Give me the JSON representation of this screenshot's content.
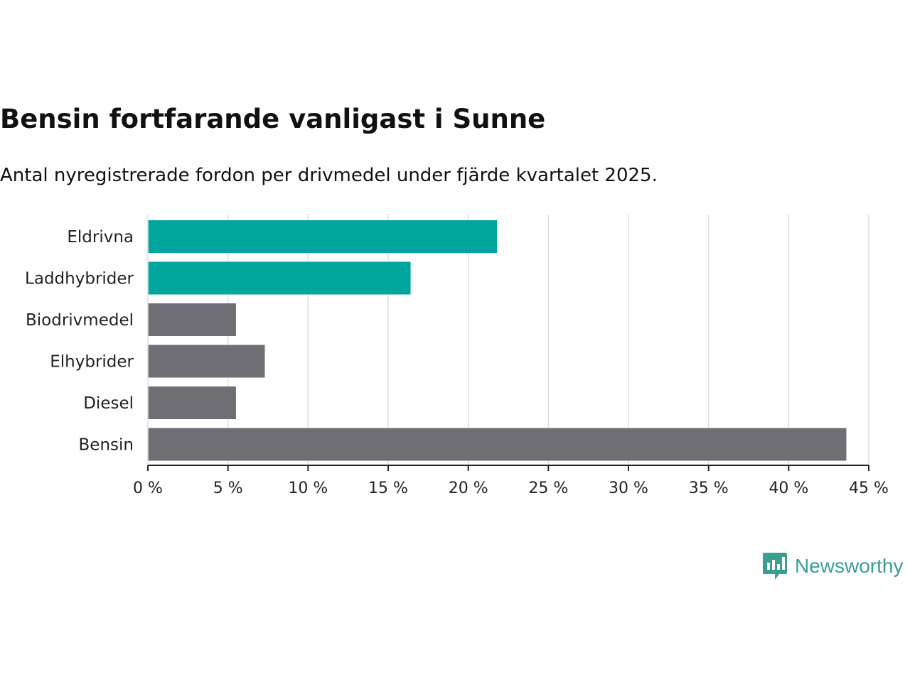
{
  "chart_data": {
    "type": "bar",
    "orientation": "horizontal",
    "title": "Bensin fortfarande vanligast i Sunne",
    "subtitle": "Antal nyregistrerade fordon per drivmedel under fjärde kvartalet 2025.",
    "categories": [
      "Eldrivna",
      "Laddhybrider",
      "Biodrivmedel",
      "Elhybrider",
      "Diesel",
      "Bensin"
    ],
    "values": [
      21.8,
      16.4,
      5.5,
      7.3,
      5.5,
      43.6
    ],
    "value_unit": "%",
    "xlim": [
      0,
      45
    ],
    "xticks": [
      0,
      5,
      10,
      15,
      20,
      25,
      30,
      35,
      40,
      45
    ],
    "xtick_labels": [
      "0 %",
      "5 %",
      "10 %",
      "15 %",
      "20 %",
      "25 %",
      "30 %",
      "35 %",
      "40 %",
      "45 %"
    ],
    "grid": true,
    "bar_colors": [
      "#00a59b",
      "#00a59b",
      "#6f6e74",
      "#6f6e74",
      "#6f6e74",
      "#6f6e74"
    ],
    "grid_color": "#dedede",
    "axis_color": "#222222"
  },
  "brand": {
    "name": "Newsworthy",
    "icon": "newsworthy-logo-icon",
    "color": "#3a9e91"
  }
}
